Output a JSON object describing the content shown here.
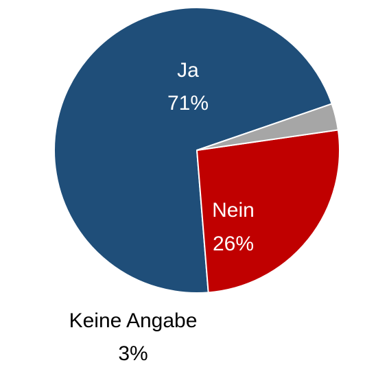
{
  "chart_data": {
    "type": "pie",
    "title": "",
    "slices": [
      {
        "label": "Ja",
        "value": 71,
        "value_label": "71%",
        "color": "#1F4E79",
        "label_color": "#ffffff"
      },
      {
        "label": "Nein",
        "value": 26,
        "value_label": "26%",
        "color": "#C00000",
        "label_color": "#ffffff"
      },
      {
        "label": "Keine Angabe",
        "value": 3,
        "value_label": "3%",
        "color": "#A6A6A6",
        "label_color": "#000000"
      }
    ],
    "start_angle_deg": 19,
    "direction": "counterclockwise",
    "legend": "none"
  }
}
